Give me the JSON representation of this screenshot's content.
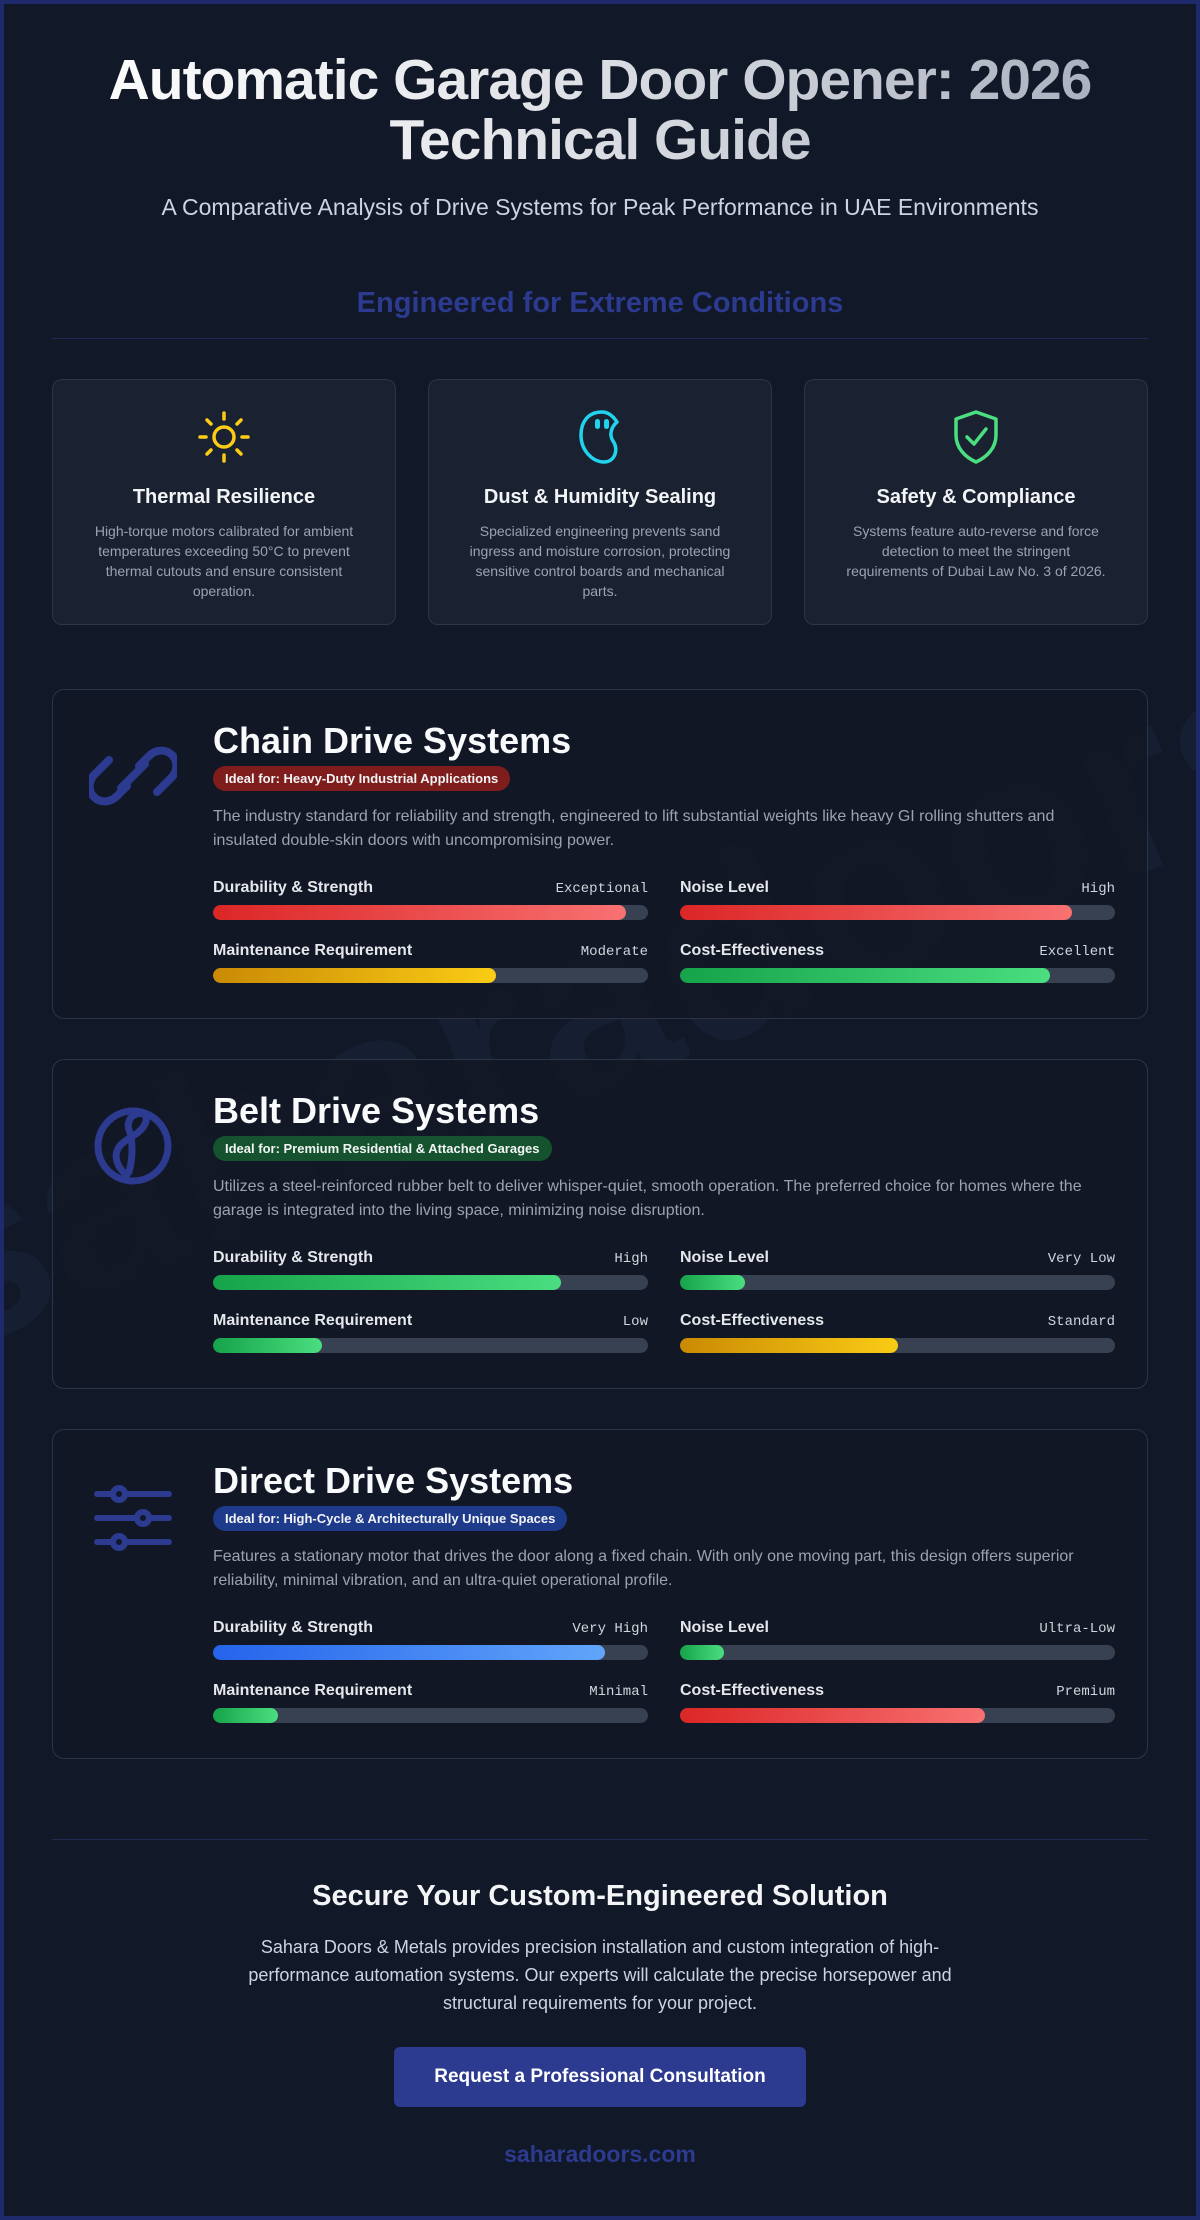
{
  "header": {
    "title": "Automatic Garage Door Opener: 2026 Technical Guide",
    "subtitle": "A Comparative Analysis of Drive Systems for Peak Performance in UAE Environments"
  },
  "conditions": {
    "heading": "Engineered for Extreme Conditions",
    "cards": [
      {
        "icon": "sun-icon",
        "title": "Thermal Resilience",
        "text": "High-torque motors calibrated for ambient temperatures exceeding 50°C to prevent thermal cutouts and ensure consistent operation."
      },
      {
        "icon": "droplet-icon",
        "title": "Dust & Humidity Sealing",
        "text": "Specialized engineering prevents sand ingress and moisture corrosion, protecting sensitive control boards and mechanical parts."
      },
      {
        "icon": "shield-check-icon",
        "title": "Safety & Compliance",
        "text": "Systems feature auto-reverse and force detection to meet the stringent requirements of Dubai Law No. 3 of 2026."
      }
    ]
  },
  "drives": [
    {
      "icon": "chain-link-icon",
      "title": "Chain Drive Systems",
      "badge": "Ideal for: Heavy-Duty Industrial Applications",
      "description": "The industry standard for reliability and strength, engineered to lift substantial weights like heavy GI rolling shutters and insulated double-skin doors with uncompromising power.",
      "metrics": [
        {
          "label": "Durability & Strength",
          "value": "Exceptional",
          "level": 0.95,
          "color": "red"
        },
        {
          "label": "Noise Level",
          "value": "High",
          "level": 0.9,
          "color": "red"
        },
        {
          "label": "Maintenance Requirement",
          "value": "Moderate",
          "level": 0.65,
          "color": "yellow"
        },
        {
          "label": "Cost-Effectiveness",
          "value": "Excellent",
          "level": 0.85,
          "color": "green"
        }
      ]
    },
    {
      "icon": "belt-loop-icon",
      "title": "Belt Drive Systems",
      "badge": "Ideal for: Premium Residential & Attached Garages",
      "description": "Utilizes a steel-reinforced rubber belt to deliver whisper-quiet, smooth operation. The preferred choice for homes where the garage is integrated into the living space, minimizing noise disruption.",
      "metrics": [
        {
          "label": "Durability & Strength",
          "value": "High",
          "level": 0.8,
          "color": "green"
        },
        {
          "label": "Noise Level",
          "value": "Very Low",
          "level": 0.15,
          "color": "green"
        },
        {
          "label": "Maintenance Requirement",
          "value": "Low",
          "level": 0.25,
          "color": "green"
        },
        {
          "label": "Cost-Effectiveness",
          "value": "Standard",
          "level": 0.5,
          "color": "yellow"
        }
      ]
    },
    {
      "icon": "sliders-icon",
      "title": "Direct Drive Systems",
      "badge": "Ideal for: High-Cycle & Architecturally Unique Spaces",
      "description": "Features a stationary motor that drives the door along a fixed chain. With only one moving part, this design offers superior reliability, minimal vibration, and an ultra-quiet operational profile.",
      "metrics": [
        {
          "label": "Durability & Strength",
          "value": "Very High",
          "level": 0.9,
          "color": "blue"
        },
        {
          "label": "Noise Level",
          "value": "Ultra-Low",
          "level": 0.1,
          "color": "green"
        },
        {
          "label": "Maintenance Requirement",
          "value": "Minimal",
          "level": 0.15,
          "color": "green"
        },
        {
          "label": "Cost-Effectiveness",
          "value": "Premium",
          "level": 0.7,
          "color": "red"
        }
      ]
    }
  ],
  "cta": {
    "title": "Secure Your Custom-Engineered Solution",
    "text": "Sahara Doors & Metals provides precision installation and custom integration of high-performance automation systems. Our experts will calculate the precise horsepower and structural requirements for your project.",
    "button": "Request a Professional Consultation",
    "link": "saharadoors.com"
  },
  "watermark": "saharadoors.com",
  "colors": {
    "accent": "#2c3a8f",
    "background": "#111827",
    "sun": "#facc15",
    "droplet": "#22d3ee",
    "shield": "#4ade80"
  }
}
